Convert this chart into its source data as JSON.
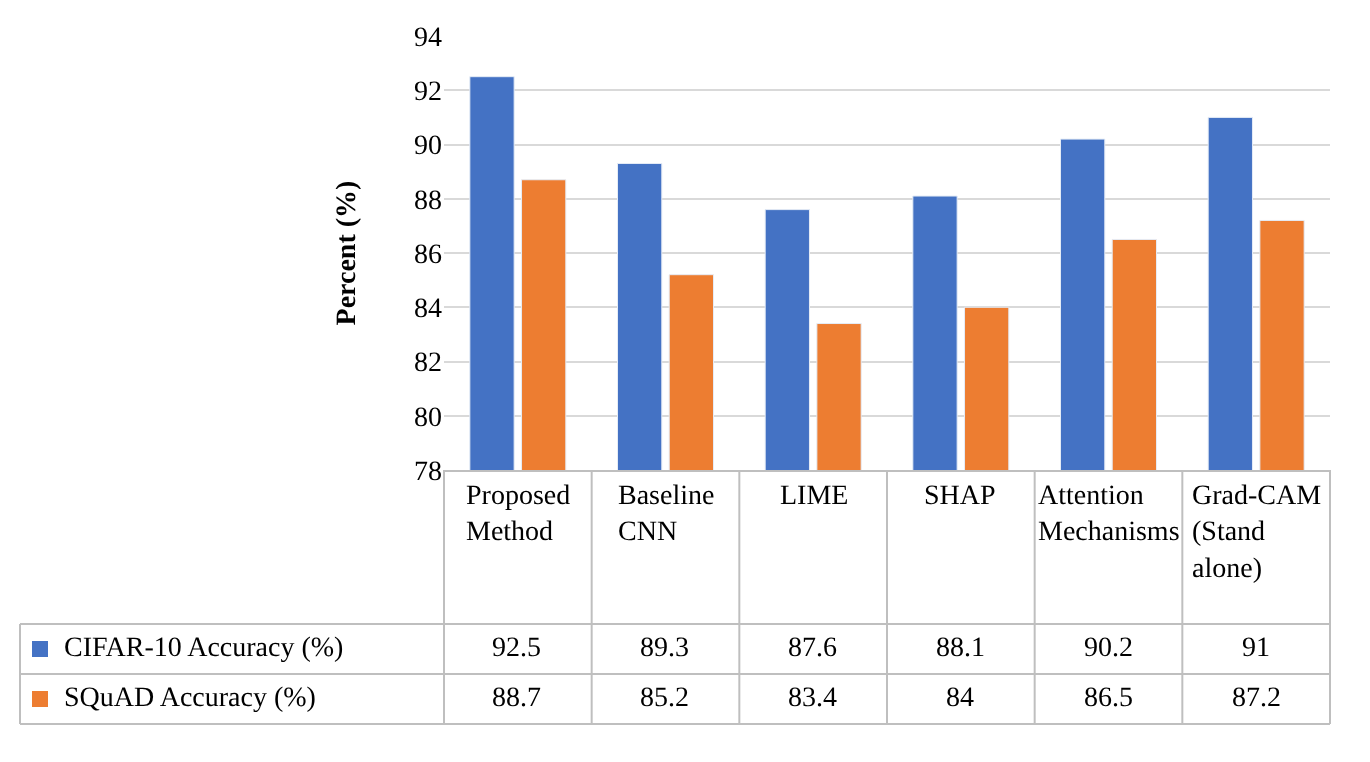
{
  "chart_data": {
    "type": "bar",
    "ylabel": "Percent (%)",
    "categories": [
      "Proposed Method",
      "Baseline CNN",
      "LIME",
      "SHAP",
      "Attention Mechanisms",
      "Grad-CAM (Stand alone)"
    ],
    "series": [
      {
        "name": "CIFAR-10 Accuracy (%)",
        "color": "#4472c4",
        "values": [
          92.5,
          89.3,
          87.6,
          88.1,
          90.2,
          91
        ]
      },
      {
        "name": "SQuAD Accuracy (%)",
        "color": "#ed7d31",
        "values": [
          88.7,
          85.2,
          83.4,
          84,
          86.5,
          87.2
        ]
      }
    ],
    "ylim": [
      78,
      94
    ],
    "yticks": [
      78,
      80,
      82,
      84,
      86,
      88,
      90,
      92,
      94
    ],
    "grid": "y",
    "data_labels": true,
    "legend": "bottom left"
  }
}
